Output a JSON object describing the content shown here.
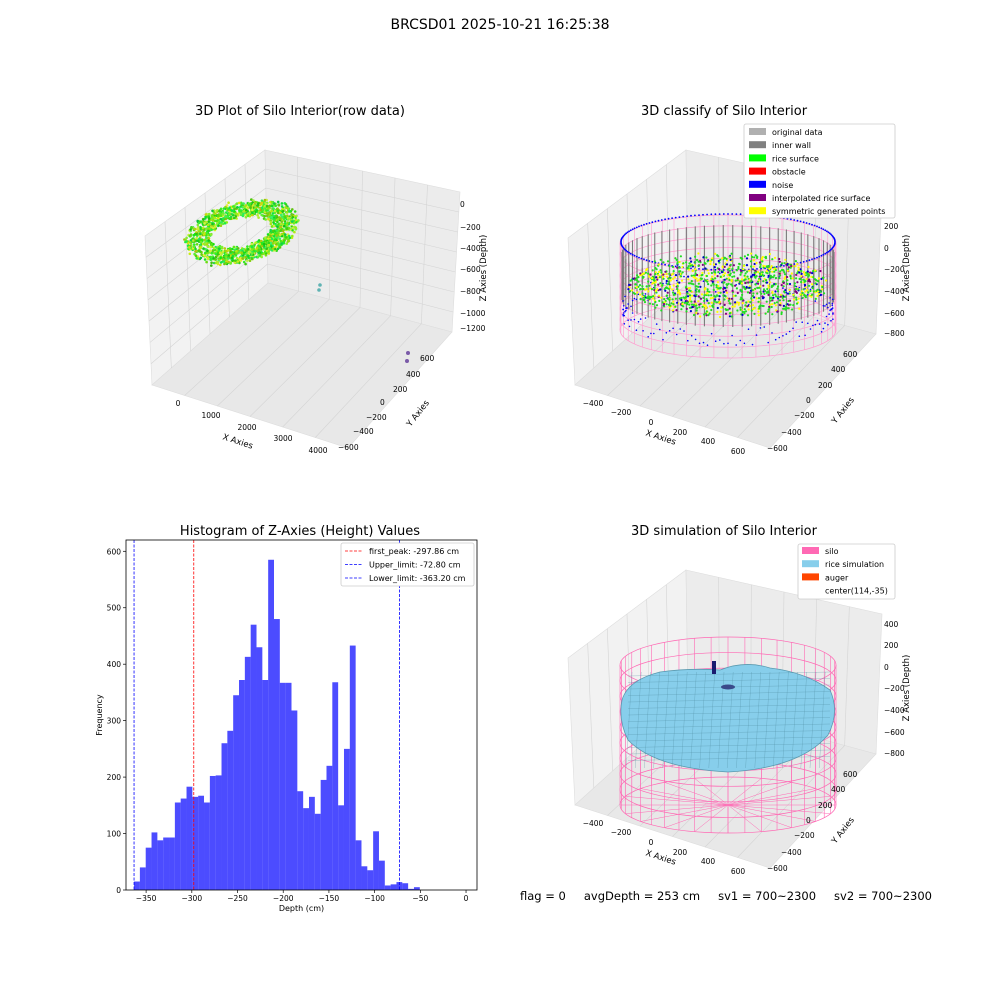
{
  "suptitle": "BRCSD01 2025-10-21 16:25:38",
  "colors": {
    "hist_bar": "#0000ff",
    "first_peak": "#ff0000",
    "limits": "#0000ff",
    "silo": "#ff69b4",
    "rice": "#87ceeb",
    "auger": "#ff4500"
  },
  "status_bar": {
    "flag": "flag = 0",
    "avg_depth": "avgDepth = 253 cm",
    "sv1": "sv1 = 700~2300",
    "sv2": "sv2 = 700~2300"
  },
  "chart_data": [
    {
      "type": "scatter",
      "title": "3D Plot of Silo Interior(row data)",
      "xlabel": "X Axies",
      "ylabel": "Y Axies",
      "zlabel": "Z Axies (Depth)",
      "x_ticks": [
        "0",
        "1000",
        "2000",
        "3000",
        "4000"
      ],
      "y_ticks": [
        "600",
        "400",
        "200",
        "0",
        "−200",
        "−400",
        "−600"
      ],
      "z_ticks": [
        "0",
        "−200",
        "−400",
        "−600",
        "−800",
        "−1000",
        "−1200"
      ],
      "xlim": [
        -500,
        4500
      ],
      "ylim": [
        -700,
        700
      ],
      "zlim": [
        -1350,
        100
      ],
      "grid": true
    },
    {
      "type": "scatter",
      "title": "3D classify of Silo Interior",
      "xlabel": "X Axies",
      "ylabel": "Y Axies",
      "zlabel": "Z Axies (Depth)",
      "x_ticks": [
        "−400",
        "−200",
        "0",
        "200",
        "400",
        "600"
      ],
      "y_ticks": [
        "600",
        "400",
        "200",
        "0",
        "−200",
        "−400",
        "−600"
      ],
      "z_ticks": [
        "200",
        "0",
        "−200",
        "−400",
        "−600",
        "−800"
      ],
      "legend": [
        {
          "label": "original data",
          "color": "#b0b0b0"
        },
        {
          "label": "inner wall",
          "color": "#808080"
        },
        {
          "label": "rice surface",
          "color": "#00ff00"
        },
        {
          "label": "obstacle",
          "color": "#ff0000"
        },
        {
          "label": "noise",
          "color": "#0000ff"
        },
        {
          "label": "interpolated rice surface",
          "color": "#800080"
        },
        {
          "label": "symmetric generated points",
          "color": "#ffff00"
        }
      ],
      "legend_position": "top-right",
      "grid": true
    },
    {
      "type": "bar",
      "title": "Histogram of Z-Axies (Height) Values",
      "xlabel": "Depth (cm)",
      "ylabel": "Frequency",
      "xlim": [
        -372,
        12
      ],
      "ylim": [
        0,
        620
      ],
      "x_ticks": [
        -350,
        -300,
        -250,
        -200,
        -150,
        -100,
        -50,
        0
      ],
      "y_ticks": [
        0,
        100,
        200,
        300,
        400,
        500,
        600
      ],
      "bin_start": -363.2,
      "bin_width": 6.38,
      "values": [
        15,
        40,
        75,
        102,
        88,
        93,
        93,
        155,
        162,
        183,
        165,
        167,
        155,
        202,
        203,
        260,
        282,
        345,
        372,
        413,
        470,
        430,
        372,
        585,
        480,
        367,
        367,
        318,
        175,
        145,
        165,
        135,
        195,
        220,
        368,
        150,
        250,
        433,
        88,
        42,
        35,
        104,
        52,
        8,
        10,
        14,
        12,
        2,
        5
      ],
      "vlines": [
        {
          "label": "first_peak: -297.86 cm",
          "x": -297.86,
          "color": "#ff0000"
        },
        {
          "label": "Upper_limit: -72.80 cm",
          "x": -72.8,
          "color": "#0000ff"
        },
        {
          "label": "Lower_limit: -363.20 cm",
          "x": -363.2,
          "color": "#0000ff"
        }
      ],
      "legend_position": "top-right",
      "grid": false
    },
    {
      "type": "area",
      "title": "3D simulation of Silo Interior",
      "xlabel": "X Axies",
      "ylabel": "Y Axies",
      "zlabel": "Z Axies (Depth)",
      "x_ticks": [
        "−400",
        "−200",
        "0",
        "200",
        "400",
        "600"
      ],
      "y_ticks": [
        "600",
        "400",
        "200",
        "0",
        "−200",
        "−400",
        "−600"
      ],
      "z_ticks": [
        "400",
        "200",
        "0",
        "−200",
        "−400",
        "−600",
        "−800"
      ],
      "legend": [
        {
          "label": "silo",
          "color": "#ff69b4"
        },
        {
          "label": "rice simulation",
          "color": "#87ceeb"
        },
        {
          "label": "auger",
          "color": "#ff4500"
        },
        {
          "label": "center(114,-35)",
          "color": ""
        }
      ],
      "legend_position": "top-right",
      "grid": true
    }
  ]
}
